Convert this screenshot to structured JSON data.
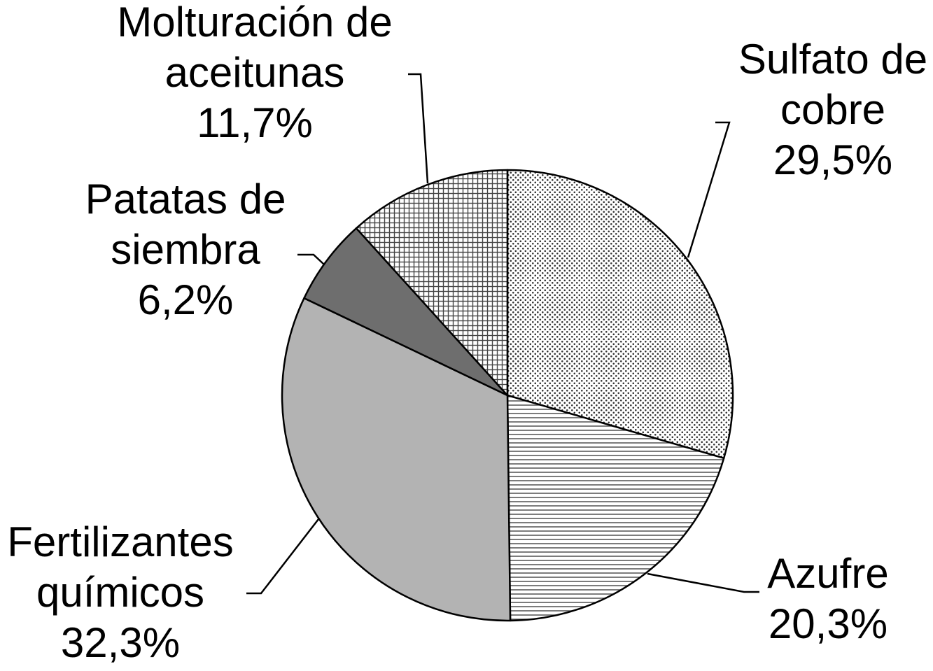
{
  "chart_data": {
    "type": "pie",
    "start": "12 o'clock",
    "direction": "clockwise",
    "slices": [
      {
        "label_lines": [
          "Sulfato de",
          "cobre"
        ],
        "value_text": "29,5%",
        "value": 29.5,
        "fill": "dots"
      },
      {
        "label_lines": [
          "Azufre"
        ],
        "value_text": "20,3%",
        "value": 20.3,
        "fill": "horizontal-lines"
      },
      {
        "label_lines": [
          "Fertilizantes",
          "químicos"
        ],
        "value_text": "32,3%",
        "value": 32.3,
        "fill": "#b3b3b3"
      },
      {
        "label_lines": [
          "Patatas de",
          "siembra"
        ],
        "value_text": "6,2%",
        "value": 6.2,
        "fill": "#6e6e6e"
      },
      {
        "label_lines": [
          "Molturación de",
          "aceitunas"
        ],
        "value_text": "11,7%",
        "value": 11.7,
        "fill": "grid"
      }
    ]
  }
}
